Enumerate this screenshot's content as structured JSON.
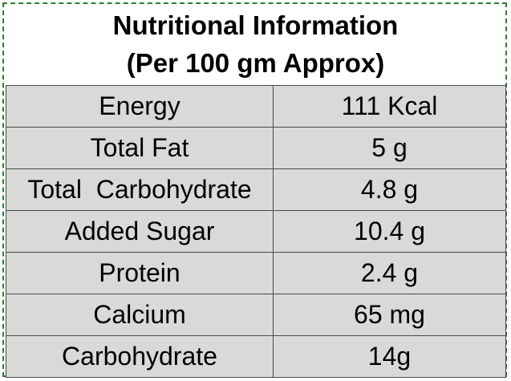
{
  "header": {
    "title": "Nutritional Information",
    "subtitle": "(Per 100 gm Approx)"
  },
  "rows": [
    {
      "nutrient": "Energy",
      "value": "111 Kcal"
    },
    {
      "nutrient": "Total Fat",
      "value": "5 g"
    },
    {
      "nutrient": "Total  Carbohydrate",
      "value": "4.8 g"
    },
    {
      "nutrient": "Added Sugar",
      "value": "10.4 g"
    },
    {
      "nutrient": "Protein",
      "value": "2.4 g"
    },
    {
      "nutrient": "Calcium",
      "value": "65 mg"
    },
    {
      "nutrient": "Carbohydrate",
      "value": "14g"
    }
  ],
  "colors": {
    "border_dashed": "#2e7d32",
    "cell_background": "#d9d9d9",
    "cell_border": "#4a4a4a"
  }
}
